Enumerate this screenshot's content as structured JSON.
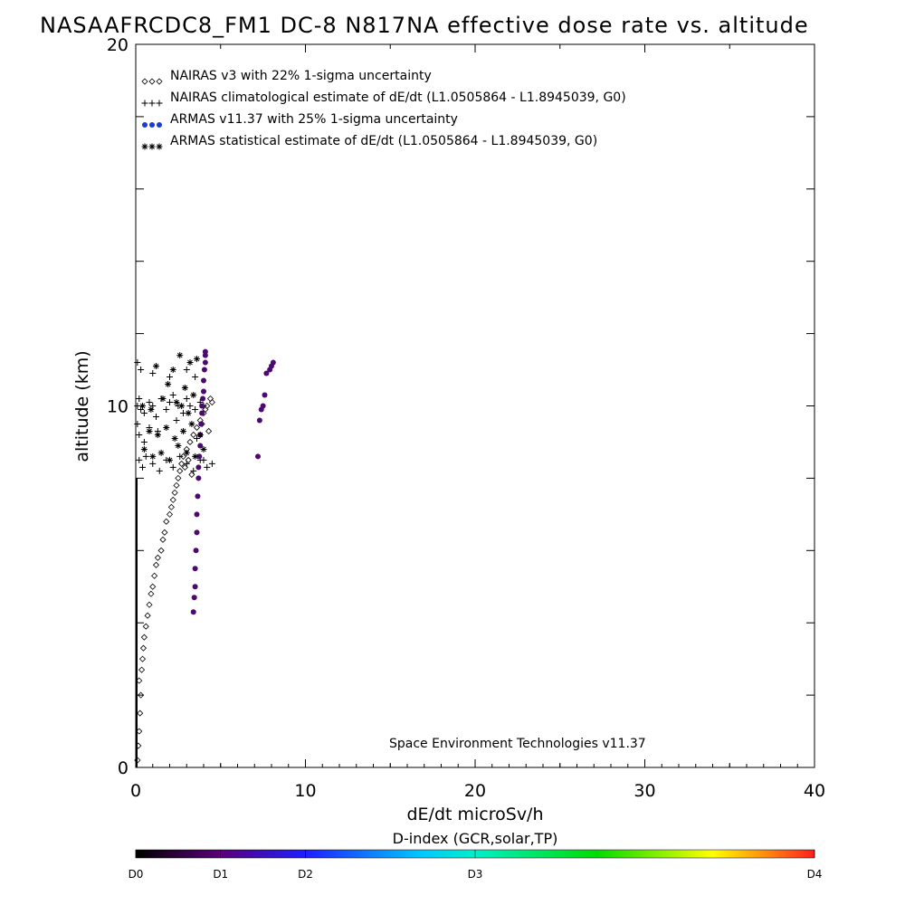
{
  "chart_data": {
    "type": "scatter",
    "title": "NASAAFRCDC8_FM1 DC-8   N817NA effective dose rate vs. altitude",
    "xlabel": "dE/dt microSv/h",
    "ylabel": "altitude (km)",
    "xlim": [
      0,
      40
    ],
    "ylim": [
      0,
      20
    ],
    "x_ticks": [
      "0",
      "10",
      "20",
      "30",
      "40"
    ],
    "y_ticks": [
      "0",
      "10",
      "20"
    ],
    "grid": false,
    "legend_position": "top-left",
    "credit": "Space Environment Technologies v11.37",
    "colorbar": {
      "title": "D-index (GCR,solar,TP)",
      "labels": [
        "D0",
        "D1",
        "D2",
        "D3",
        "D4"
      ],
      "label_positions": [
        0,
        0.125,
        0.25,
        0.5,
        1.0
      ]
    },
    "series": [
      {
        "name": "NAIRAS v3 with 22% 1-sigma uncertainty",
        "marker": "diamond",
        "color": "#000000",
        "x": [
          0.1,
          0.15,
          0.2,
          0.25,
          0.3,
          0.2,
          0.35,
          0.4,
          0.45,
          0.5,
          0.6,
          0.7,
          0.8,
          0.9,
          1.0,
          1.1,
          1.2,
          1.3,
          1.5,
          1.6,
          1.7,
          1.8,
          2.0,
          2.1,
          2.2,
          2.3,
          2.4,
          2.5,
          2.6,
          2.7,
          2.8,
          3.0,
          3.2,
          3.4,
          3.6,
          3.8,
          4.0,
          4.2,
          4.4,
          4.5,
          3.9,
          4.1,
          4.3,
          2.9,
          3.1,
          3.3
        ],
        "y": [
          0.2,
          0.6,
          1.0,
          1.5,
          2.0,
          2.4,
          2.7,
          3.0,
          3.3,
          3.6,
          3.9,
          4.2,
          4.5,
          4.8,
          5.0,
          5.3,
          5.6,
          5.8,
          6.0,
          6.3,
          6.5,
          6.8,
          7.0,
          7.2,
          7.4,
          7.6,
          7.8,
          8.0,
          8.2,
          8.4,
          8.6,
          8.8,
          9.0,
          9.2,
          9.4,
          9.6,
          9.8,
          10.0,
          10.2,
          10.1,
          9.5,
          9.9,
          9.3,
          8.3,
          8.5,
          8.1
        ]
      },
      {
        "name": "NAIRAS climatological estimate of dE/dt (L1.0505864 - L1.8945039, G0)",
        "marker": "plus",
        "color": "#000000",
        "x": [
          0.1,
          0.2,
          0.3,
          0.5,
          0.8,
          1.0,
          1.2,
          1.5,
          1.8,
          2.0,
          2.2,
          2.5,
          2.8,
          3.0,
          3.2,
          3.5,
          3.8,
          4.0,
          0.2,
          0.4,
          0.6,
          1.0,
          1.4,
          1.8,
          2.2,
          2.6,
          3.0,
          3.4,
          3.8,
          0.1,
          0.3,
          1.0,
          2.0,
          3.0,
          3.5,
          4.0,
          4.2,
          4.5,
          0.1,
          0.2,
          0.5,
          0.8,
          1.3,
          2.4,
          3.6
        ],
        "y": [
          10.0,
          10.2,
          9.9,
          9.8,
          10.1,
          10.0,
          9.7,
          10.2,
          9.9,
          10.1,
          10.3,
          10.0,
          9.8,
          10.2,
          10.0,
          9.9,
          10.1,
          10.0,
          8.5,
          8.3,
          8.6,
          8.4,
          8.2,
          8.5,
          8.3,
          8.6,
          8.4,
          8.2,
          8.5,
          11.2,
          11.0,
          10.9,
          10.8,
          11.0,
          10.8,
          8.5,
          8.3,
          8.4,
          9.5,
          9.2,
          9.0,
          9.4,
          9.3,
          9.6,
          9.1
        ]
      },
      {
        "name": "ARMAS v11.37 with 25% 1-sigma uncertainty",
        "marker": "dot",
        "color": "#1a3bd6",
        "x": [
          3.4,
          3.45,
          3.5,
          3.5,
          3.55,
          3.6,
          3.6,
          3.65,
          3.7,
          3.7,
          3.75,
          3.8,
          3.8,
          3.85,
          3.9,
          3.9,
          3.95,
          4.0,
          4.0,
          4.05,
          4.1,
          4.1,
          4.1,
          7.2,
          7.3,
          7.4,
          7.5,
          7.6,
          7.7,
          7.9,
          8.0,
          8.1
        ],
        "y": [
          4.3,
          4.7,
          5.0,
          5.5,
          6.0,
          6.5,
          7.0,
          7.5,
          8.0,
          8.3,
          8.6,
          8.9,
          9.2,
          9.5,
          9.8,
          10.0,
          10.2,
          10.4,
          10.7,
          11.0,
          11.2,
          11.4,
          11.5,
          8.6,
          9.6,
          9.9,
          10.0,
          10.3,
          10.9,
          11.0,
          11.1,
          11.2
        ]
      },
      {
        "name": "ARMAS statistical estimate of dE/dt (L1.0505864 - L1.8945039, G0)",
        "marker": "asterisk",
        "color": "#000000",
        "x": [
          0.5,
          1.0,
          1.5,
          2.0,
          2.5,
          3.0,
          3.5,
          4.0,
          0.8,
          1.3,
          1.8,
          2.3,
          2.8,
          3.3,
          3.8,
          1.2,
          2.2,
          2.6,
          3.2,
          3.6,
          0.4,
          0.9,
          1.6,
          2.4,
          2.7,
          3.1,
          3.4,
          1.9,
          2.9
        ],
        "y": [
          8.8,
          8.6,
          8.7,
          8.5,
          8.9,
          8.7,
          8.6,
          8.8,
          9.3,
          9.2,
          9.4,
          9.1,
          9.3,
          9.5,
          9.2,
          11.1,
          11.0,
          11.4,
          11.2,
          11.3,
          10.0,
          9.9,
          10.2,
          10.1,
          10.0,
          9.8,
          10.3,
          10.6,
          10.5
        ]
      }
    ]
  }
}
